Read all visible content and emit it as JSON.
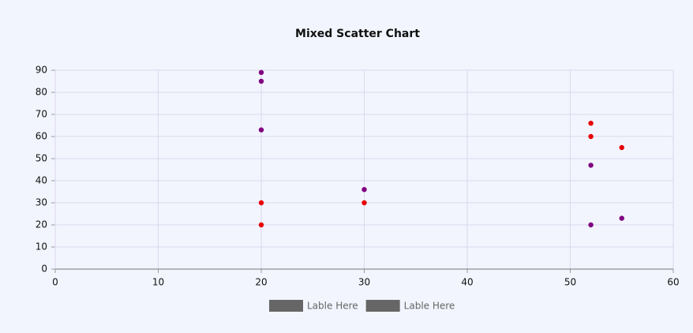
{
  "chart_data": {
    "type": "scatter",
    "title": "Mixed Scatter Chart",
    "series": [
      {
        "name": "Lable Here",
        "color": "#e60000",
        "x": [
          20,
          20,
          30,
          52,
          52,
          55
        ],
        "values": [
          30,
          20,
          30,
          66,
          60,
          55
        ]
      },
      {
        "name": "Lable Here",
        "color": "#800080",
        "x": [
          20,
          20,
          20,
          30,
          52,
          52,
          55
        ],
        "values": [
          89,
          85,
          63,
          36,
          47,
          20,
          23
        ]
      }
    ],
    "legend_swatch_color": "#666666",
    "xlim": [
      0,
      60
    ],
    "xticks": [
      0,
      10,
      20,
      30,
      40,
      50,
      60
    ],
    "ylim": [
      0,
      90
    ],
    "yticks": [
      0,
      10,
      20,
      30,
      40,
      50,
      60,
      70,
      80,
      90
    ],
    "grid": true,
    "legend": "bottom"
  }
}
